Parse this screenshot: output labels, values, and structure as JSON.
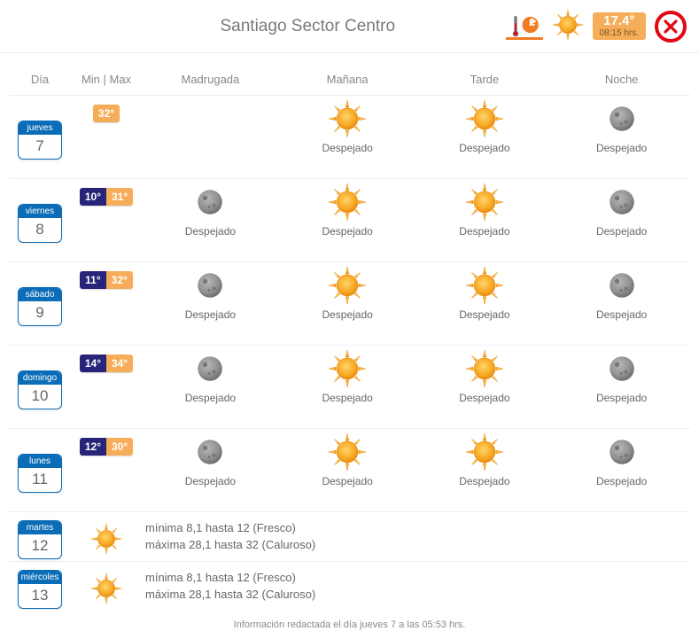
{
  "colors": {
    "accent_orange": "#ef7d24",
    "temp_max_bg": "#f5ad5a",
    "temp_min_bg": "#27247a",
    "day_badge_border": "#0b6db7",
    "close_red": "#e30613",
    "sun_fill": "#f7a823",
    "sun_stroke": "#e88b12",
    "moon_fill": "#8e8e8e",
    "moon_shadow": "#6f6f6f",
    "text_muted": "#7a7a7a",
    "divider": "#eeeeee"
  },
  "header": {
    "title": "Santiago Sector Centro",
    "current_temp": "17.4°",
    "current_time": "08:15 hrs."
  },
  "columns": {
    "dia": "Día",
    "minmax": "Min | Max",
    "madrugada": "Madrugada",
    "manana": "Mañana",
    "tarde": "Tarde",
    "noche": "Noche"
  },
  "condition_label": "Despejado",
  "days": [
    {
      "name": "jueves",
      "num": "7",
      "min": null,
      "max": "32°",
      "parts": {
        "madrugada": null,
        "manana": "sun",
        "tarde": "sun",
        "noche": "moon"
      }
    },
    {
      "name": "viernes",
      "num": "8",
      "min": "10°",
      "max": "31°",
      "parts": {
        "madrugada": "moon",
        "manana": "sun",
        "tarde": "sun",
        "noche": "moon"
      }
    },
    {
      "name": "sábado",
      "num": "9",
      "min": "11°",
      "max": "32°",
      "parts": {
        "madrugada": "moon",
        "manana": "sun",
        "tarde": "sun",
        "noche": "moon"
      }
    },
    {
      "name": "domingo",
      "num": "10",
      "min": "14°",
      "max": "34°",
      "parts": {
        "madrugada": "moon",
        "manana": "sun",
        "tarde": "sun",
        "noche": "moon"
      }
    },
    {
      "name": "lunes",
      "num": "11",
      "min": "12°",
      "max": "30°",
      "parts": {
        "madrugada": "moon",
        "manana": "sun",
        "tarde": "sun",
        "noche": "moon"
      }
    }
  ],
  "extended": [
    {
      "name": "martes",
      "num": "12",
      "line1": "mínima 8,1 hasta 12 (Fresco)",
      "line2": "máxima 28,1 hasta 32 (Caluroso)"
    },
    {
      "name": "miércoles",
      "num": "13",
      "line1": "mínima 8,1 hasta 12 (Fresco)",
      "line2": "máxima 28,1 hasta 32 (Caluroso)"
    }
  ],
  "footer": "Información redactada el día jueves 7 a las 05:53 hrs."
}
